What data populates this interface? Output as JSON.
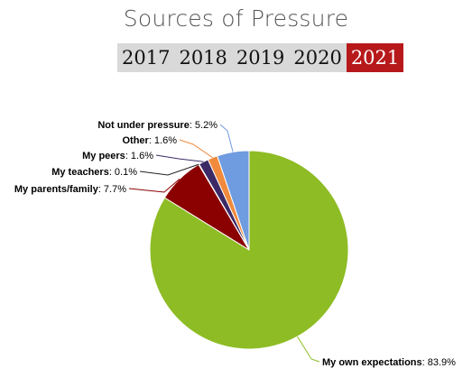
{
  "header": {
    "title": "Sources of Pressure",
    "years": [
      {
        "label": "2017",
        "active": false
      },
      {
        "label": "2018",
        "active": false
      },
      {
        "label": "2019",
        "active": false
      },
      {
        "label": "2020",
        "active": false
      },
      {
        "label": "2021",
        "active": true
      }
    ]
  },
  "chart_data": {
    "type": "pie",
    "title": "Sources of Pressure",
    "selected_year": "2021",
    "slices": [
      {
        "name": "My own expectations",
        "value": 83.9,
        "label": "83.9%",
        "color": "#8ebc24"
      },
      {
        "name": "My parents/family",
        "value": 7.7,
        "label": "7.7%",
        "color": "#8b0000"
      },
      {
        "name": "My teachers",
        "value": 0.1,
        "label": "0.1%",
        "color": "#000000"
      },
      {
        "name": "My peers",
        "value": 1.6,
        "label": "1.6%",
        "color": "#3b2a66"
      },
      {
        "name": "Other",
        "value": 1.6,
        "label": "1.6%",
        "color": "#f08a3c"
      },
      {
        "name": "Not under pressure",
        "value": 5.2,
        "label": "5.2%",
        "color": "#6f9be0"
      }
    ]
  }
}
